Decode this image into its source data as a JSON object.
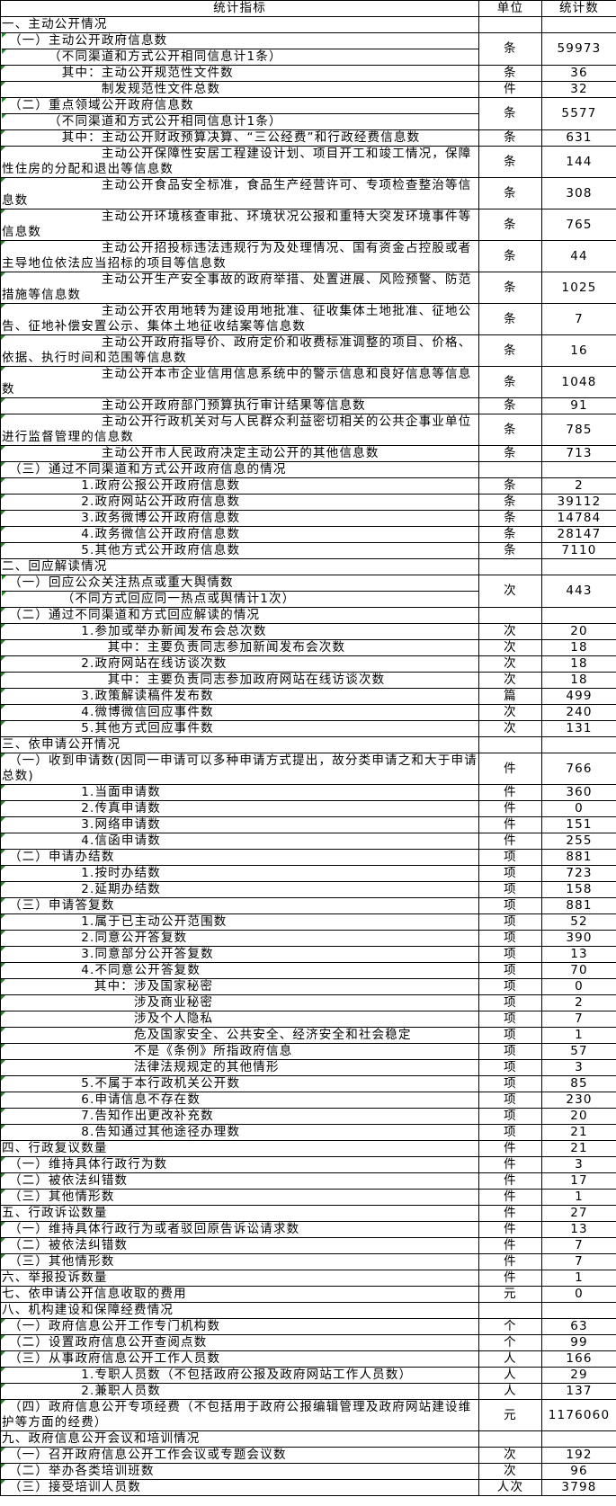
{
  "header": {
    "indicator": "统计指标",
    "unit": "单位",
    "count": "统计数"
  },
  "rows": [
    {
      "label": "一、主动公开情况",
      "unit": "",
      "value": ""
    },
    {
      "label": "　（一）主动公开政府信息数",
      "note": "　　　　（不同渠道和方式公开相同信息计1条）",
      "unit": "条",
      "value": "59973"
    },
    {
      "label": "　　　　 其中：主动公开规范性文件数",
      "unit": "条",
      "value": "36"
    },
    {
      "label": "　　　　　　　 制发规范性文件总数",
      "unit": "件",
      "value": "32"
    },
    {
      "label": "　（二）重点领域公开政府信息数",
      "note": "　　　　（不同渠道和方式公开相同信息计1条）",
      "unit": "条",
      "value": "5577"
    },
    {
      "label": "　　　　 其中：主动公开财政预算决算、“三公经费”和行政经费信息数",
      "unit": "条",
      "value": "631"
    },
    {
      "label": "　　　　　　　 主动公开保障性安居工程建设计划、项目开工和竣工情况，保障性住房的分配和退出等信息数",
      "unit": "条",
      "value": "144"
    },
    {
      "label": "　　　　　　　 主动公开食品安全标准，食品生产经营许可、专项检查整治等信息数",
      "unit": "条",
      "value": "308"
    },
    {
      "label": "　　　　　　　 主动公开环境核查审批、环境状况公报和重特大突发环境事件等信息数",
      "unit": "条",
      "value": "765"
    },
    {
      "label": "　　　　　　　 主动公开招投标违法违规行为及处理情况、国有资金占控股或者主导地位依法应当招标的项目等信息数",
      "unit": "条",
      "value": "44"
    },
    {
      "label": "　　　　　　　 主动公开生产安全事故的政府举措、处置进展、风险预警、防范措施等信息数",
      "unit": "条",
      "value": "1025"
    },
    {
      "label": "　　　　　　　 主动公开农用地转为建设用地批准、征收集体土地批准、征地公告、征地补偿安置公示、集体土地征收结案等信息数",
      "unit": "条",
      "value": "7"
    },
    {
      "label": "　　　　　　　 主动公开政府指导价、政府定价和收费标准调整的项目、价格、依据、执行时间和范围等信息数",
      "unit": "条",
      "value": "16"
    },
    {
      "label": "　　　　　　　 主动公开本市企业信用信息系统中的警示信息和良好信息等信息数",
      "unit": "条",
      "value": "1048"
    },
    {
      "label": "　　　　　　　 主动公开政府部门预算执行审计结果等信息数",
      "unit": "条",
      "value": "91"
    },
    {
      "label": "　　　　　　　 主动公开行政机关对与人民群众利益密切相关的公共企事业单位进行监督管理的信息数",
      "unit": "条",
      "value": "785"
    },
    {
      "label": "　　　　　　　 主动公开市人民政府决定主动公开的其他信息数",
      "unit": "条",
      "value": "713"
    },
    {
      "label": " （三）通过不同渠道和方式公开政府信息的情况",
      "unit": "",
      "value": ""
    },
    {
      "label": "　　　　　　1.政府公报公开政府信息数",
      "unit": "条",
      "value": "2"
    },
    {
      "label": "　　　　　　2.政府网站公开政府信息数",
      "unit": "条",
      "value": "39112"
    },
    {
      "label": "　　　　　　3.政务微博公开政府信息数",
      "unit": "条",
      "value": "14784"
    },
    {
      "label": "　　　　　　4.政务微信公开政府信息数",
      "unit": "条",
      "value": "28147"
    },
    {
      "label": "　　　　　　5.其他方式公开政府信息数",
      "unit": "条",
      "value": "7110"
    },
    {
      "label": "二、回应解读情况",
      "unit": "",
      "value": ""
    },
    {
      "label": " （一）回应公众关注热点或重大舆情数",
      "note": "　　　　　（不同方式回应同一热点或舆情计1次）",
      "unit": "次",
      "value": "443"
    },
    {
      "label": " （二）通过不同渠道和方式回应解读的情况",
      "unit": "",
      "value": ""
    },
    {
      "label": "　　　　　　1.参加或举办新闻发布会总次数",
      "unit": "次",
      "value": "20"
    },
    {
      "label": "　　　　　　　　其中：主要负责同志参加新闻发布会次数",
      "unit": "次",
      "value": "18"
    },
    {
      "label": "　　　　　　2.政府网站在线访谈次数",
      "unit": "次",
      "value": "18"
    },
    {
      "label": "　　　　　　　　其中：主要负责同志参加政府网站在线访谈次数",
      "unit": "次",
      "value": "18"
    },
    {
      "label": "　　　　　　3.政策解读稿件发布数",
      "unit": "篇",
      "value": "499"
    },
    {
      "label": "　　　　　　4.微博微信回应事件数",
      "unit": "次",
      "value": "240"
    },
    {
      "label": "　　　　　　5.其他方式回应事件数",
      "unit": "次",
      "value": "131"
    },
    {
      "label": "三、依申请公开情况",
      "unit": "",
      "value": ""
    },
    {
      "label": " （一）收到申请数(因同一申请可以多种申请方式提出，故分类申请之和大于申请总数)",
      "unit": "件",
      "value": "766"
    },
    {
      "label": "　　　　　　1.当面申请数",
      "unit": "件",
      "value": "360"
    },
    {
      "label": "　　　　　　2.传真申请数",
      "unit": "件",
      "value": "0"
    },
    {
      "label": "　　　　　　3.网络申请数",
      "unit": "件",
      "value": "151"
    },
    {
      "label": "　　　　　　4.信函申请数",
      "unit": "件",
      "value": "255"
    },
    {
      "label": " （二）申请办结数",
      "unit": "项",
      "value": "881"
    },
    {
      "label": "　　　　　　1.按时办结数",
      "unit": "项",
      "value": "723"
    },
    {
      "label": "　　　　　　2.延期办结数",
      "unit": "项",
      "value": "158"
    },
    {
      "label": " （三）申请答复数",
      "unit": "项",
      "value": "881"
    },
    {
      "label": "　　　　　　1.属于已主动公开范围数",
      "unit": "项",
      "value": "52"
    },
    {
      "label": "　　　　　　2.同意公开答复数",
      "unit": "项",
      "value": "390"
    },
    {
      "label": "　　　　　　3.同意部分公开答复数",
      "unit": "项",
      "value": "13"
    },
    {
      "label": "　　　　　　4.不同意公开答复数",
      "unit": "项",
      "value": "70"
    },
    {
      "label": "　　　　　　　其中：涉及国家秘密",
      "unit": "项",
      "value": "0"
    },
    {
      "label": "　　　　　　　　　　涉及商业秘密",
      "unit": "项",
      "value": "2"
    },
    {
      "label": "　　　　　　　　　　涉及个人隐私",
      "unit": "项",
      "value": "7"
    },
    {
      "label": "　　　　　　　　　　危及国家安全、公共安全、经济安全和社会稳定",
      "unit": "项",
      "value": "1"
    },
    {
      "label": "　　　　　　　　　　不是《条例》所指政府信息",
      "unit": "项",
      "value": "57"
    },
    {
      "label": "　　　　　　　　　　法律法规规定的其他情形",
      "unit": "项",
      "value": "3"
    },
    {
      "label": "　　　　　　5.不属于本行政机关公开数",
      "unit": "项",
      "value": "85"
    },
    {
      "label": "　　　　　　6.申请信息不存在数",
      "unit": "项",
      "value": "230"
    },
    {
      "label": "　　　　　　7.告知作出更改补充数",
      "unit": "项",
      "value": "20"
    },
    {
      "label": "　　　　　　8.告知通过其他途径办理数",
      "unit": "项",
      "value": "21"
    },
    {
      "label": "四、行政复议数量",
      "unit": "件",
      "value": "21"
    },
    {
      "label": "　（一）维持具体行政行为数",
      "unit": "件",
      "value": "3"
    },
    {
      "label": "　（二）被依法纠错数",
      "unit": "件",
      "value": "17"
    },
    {
      "label": "　（三）其他情形数",
      "unit": "件",
      "value": "1"
    },
    {
      "label": "五、行政诉讼数量",
      "unit": "件",
      "value": "27"
    },
    {
      "label": "　（一）维持具体行政行为或者驳回原告诉讼请求数",
      "unit": "件",
      "value": "13"
    },
    {
      "label": "　（二）被依法纠错数",
      "unit": "件",
      "value": "7"
    },
    {
      "label": "　（三）其他情形数",
      "unit": "件",
      "value": "7"
    },
    {
      "label": "六、举报投诉数量",
      "unit": "件",
      "value": "1"
    },
    {
      "label": "七、依申请公开信息收取的费用",
      "unit": "元",
      "value": "0"
    },
    {
      "label": "八、机构建设和保障经费情况",
      "unit": "",
      "value": ""
    },
    {
      "label": "　（一）政府信息公开工作专门机构数",
      "unit": "个",
      "value": "63"
    },
    {
      "label": "　（二）设置政府信息公开查阅点数",
      "unit": "个",
      "value": "99"
    },
    {
      "label": "　（三）从事政府信息公开工作人员数",
      "unit": "人",
      "value": "166"
    },
    {
      "label": "　　　　　　1.专职人员数（不包括政府公报及政府网站工作人员数）",
      "unit": "人",
      "value": "29"
    },
    {
      "label": "　　　　　　2.兼职人员数",
      "unit": "人",
      "value": "137"
    },
    {
      "label": "　（四）政府信息公开专项经费（不包括用于政府公报编辑管理及政府网站建设维护等方面的经费）",
      "unit": "元",
      "value": "1176060"
    },
    {
      "label": "九、政府信息公开会议和培训情况",
      "unit": "",
      "value": ""
    },
    {
      "label": "　（一）召开政府信息公开工作会议或专题会议数",
      "unit": "次",
      "value": "192"
    },
    {
      "label": "　（二）举办各类培训班数",
      "unit": "次",
      "value": "96"
    },
    {
      "label": "　（三）接受培训人员数",
      "unit": "人次",
      "value": "3798"
    }
  ],
  "colors": {
    "cell_marker": "#1a8a1a",
    "grid": "#000000"
  }
}
